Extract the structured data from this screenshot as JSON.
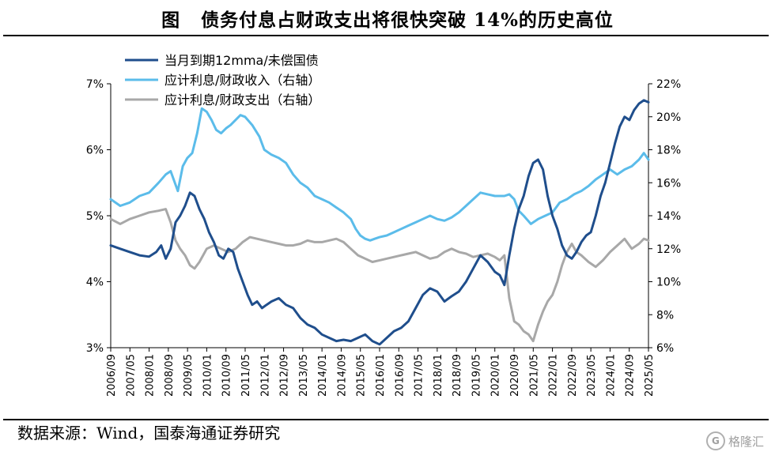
{
  "header": {
    "figure_label": "图",
    "title": "债务付息占财政支出将很快突破 14%的历史高位"
  },
  "footer": {
    "source": "数据来源：Wind，国泰海通证券研究"
  },
  "watermark": {
    "text": "格隆汇",
    "logo_glyph": "G"
  },
  "chart_data": {
    "type": "line",
    "title": "债务付息占财政支出将很快突破 14%的历史高位",
    "xlabel": "",
    "ylabel": "",
    "left_axis": {
      "ylim": [
        3,
        7
      ],
      "ticks": [
        "3%",
        "4%",
        "5%",
        "6%",
        "7%"
      ]
    },
    "right_axis": {
      "ylim": [
        6,
        22
      ],
      "ticks": [
        "6%",
        "8%",
        "10%",
        "12%",
        "14%",
        "16%",
        "18%",
        "20%",
        "22%"
      ]
    },
    "x_ticks": [
      "2006/09",
      "2007/05",
      "2008/01",
      "2008/09",
      "2009/05",
      "2010/01",
      "2010/09",
      "2011/05",
      "2012/01",
      "2012/09",
      "2013/05",
      "2014/01",
      "2014/09",
      "2015/05",
      "2016/01",
      "2016/09",
      "2017/05",
      "2018/01",
      "2018/09",
      "2019/05",
      "2020/01",
      "2020/09",
      "2021/05",
      "2022/01",
      "2022/09",
      "2023/05",
      "2024/01",
      "2024/09",
      "2025/05"
    ],
    "x_range": [
      2006.67,
      2025.33
    ],
    "grid": false,
    "legend": "top-left",
    "series": [
      {
        "name": "当月到期12mma/未偿国债",
        "axis": "left",
        "color": "#1f4e8c",
        "x": [
          2006.67,
          2007.0,
          2007.33,
          2007.67,
          2008.0,
          2008.25,
          2008.42,
          2008.58,
          2008.75,
          2008.92,
          2009.08,
          2009.25,
          2009.42,
          2009.58,
          2009.75,
          2009.92,
          2010.08,
          2010.25,
          2010.42,
          2010.58,
          2010.75,
          2010.92,
          2011.08,
          2011.25,
          2011.42,
          2011.58,
          2011.75,
          2011.92,
          2012.08,
          2012.25,
          2012.5,
          2012.75,
          2013.0,
          2013.25,
          2013.5,
          2013.75,
          2014.0,
          2014.25,
          2014.5,
          2014.75,
          2015.0,
          2015.25,
          2015.5,
          2015.75,
          2016.0,
          2016.25,
          2016.5,
          2016.75,
          2017.0,
          2017.25,
          2017.5,
          2017.75,
          2018.0,
          2018.25,
          2018.5,
          2018.75,
          2019.0,
          2019.25,
          2019.5,
          2019.75,
          2020.0,
          2020.17,
          2020.33,
          2020.5,
          2020.67,
          2020.83,
          2021.0,
          2021.17,
          2021.33,
          2021.5,
          2021.67,
          2021.83,
          2022.0,
          2022.17,
          2022.33,
          2022.5,
          2022.67,
          2022.83,
          2023.0,
          2023.17,
          2023.33,
          2023.5,
          2023.67,
          2023.83,
          2024.0,
          2024.17,
          2024.33,
          2024.5,
          2024.67,
          2024.83,
          2025.0,
          2025.17,
          2025.33
        ],
        "values": [
          4.55,
          4.5,
          4.45,
          4.4,
          4.38,
          4.45,
          4.55,
          4.35,
          4.5,
          4.9,
          5.0,
          5.15,
          5.35,
          5.3,
          5.1,
          4.95,
          4.75,
          4.6,
          4.4,
          4.35,
          4.5,
          4.45,
          4.2,
          4.0,
          3.8,
          3.65,
          3.7,
          3.6,
          3.65,
          3.7,
          3.75,
          3.65,
          3.6,
          3.45,
          3.35,
          3.3,
          3.2,
          3.15,
          3.1,
          3.12,
          3.1,
          3.15,
          3.2,
          3.1,
          3.05,
          3.15,
          3.25,
          3.3,
          3.4,
          3.6,
          3.8,
          3.9,
          3.85,
          3.7,
          3.78,
          3.85,
          4.0,
          4.2,
          4.4,
          4.3,
          4.15,
          4.1,
          3.95,
          4.4,
          4.8,
          5.1,
          5.3,
          5.6,
          5.8,
          5.85,
          5.7,
          5.3,
          5.0,
          4.8,
          4.55,
          4.4,
          4.35,
          4.45,
          4.6,
          4.7,
          4.75,
          5.0,
          5.3,
          5.5,
          5.8,
          6.1,
          6.35,
          6.5,
          6.45,
          6.6,
          6.7,
          6.75,
          6.72
        ]
      },
      {
        "name": "应计利息/财政收入（右轴）",
        "axis": "right",
        "color": "#5bbcea",
        "x": [
          2006.67,
          2007.0,
          2007.33,
          2007.67,
          2008.0,
          2008.33,
          2008.58,
          2008.75,
          2009.0,
          2009.17,
          2009.33,
          2009.5,
          2009.67,
          2009.83,
          2010.0,
          2010.17,
          2010.33,
          2010.5,
          2010.67,
          2010.83,
          2011.0,
          2011.17,
          2011.33,
          2011.58,
          2011.83,
          2012.0,
          2012.25,
          2012.5,
          2012.75,
          2013.0,
          2013.25,
          2013.5,
          2013.75,
          2014.0,
          2014.25,
          2014.5,
          2014.75,
          2015.0,
          2015.17,
          2015.33,
          2015.5,
          2015.67,
          2015.83,
          2016.0,
          2016.25,
          2016.5,
          2016.75,
          2017.0,
          2017.25,
          2017.5,
          2017.75,
          2018.0,
          2018.25,
          2018.5,
          2018.75,
          2019.0,
          2019.25,
          2019.5,
          2019.75,
          2020.0,
          2020.17,
          2020.33,
          2020.5,
          2020.67,
          2020.83,
          2021.0,
          2021.25,
          2021.5,
          2021.75,
          2022.0,
          2022.25,
          2022.5,
          2022.75,
          2023.0,
          2023.25,
          2023.5,
          2023.75,
          2024.0,
          2024.25,
          2024.5,
          2024.75,
          2025.0,
          2025.17,
          2025.33
        ],
        "values": [
          15.0,
          14.6,
          14.8,
          15.2,
          15.4,
          16.0,
          16.5,
          16.7,
          15.5,
          17.0,
          17.5,
          17.8,
          19.0,
          20.5,
          20.3,
          19.8,
          19.2,
          19.0,
          19.3,
          19.5,
          19.8,
          20.1,
          20.0,
          19.5,
          18.8,
          18.0,
          17.7,
          17.5,
          17.2,
          16.5,
          16.0,
          15.7,
          15.2,
          15.0,
          14.8,
          14.5,
          14.2,
          13.8,
          13.2,
          12.8,
          12.6,
          12.5,
          12.6,
          12.7,
          12.8,
          13.0,
          13.2,
          13.4,
          13.6,
          13.8,
          14.0,
          13.8,
          13.7,
          13.9,
          14.2,
          14.6,
          15.0,
          15.4,
          15.3,
          15.2,
          15.2,
          15.2,
          15.3,
          15.0,
          14.3,
          14.0,
          13.5,
          13.8,
          14.0,
          14.2,
          14.8,
          15.0,
          15.3,
          15.5,
          15.8,
          16.2,
          16.5,
          16.8,
          16.5,
          16.8,
          17.0,
          17.4,
          17.8,
          17.4
        ]
      },
      {
        "name": "应计利息/财政支出（右轴）",
        "axis": "right",
        "color": "#a8a8a8",
        "x": [
          2006.67,
          2007.0,
          2007.33,
          2007.67,
          2008.0,
          2008.33,
          2008.58,
          2008.75,
          2008.92,
          2009.08,
          2009.25,
          2009.42,
          2009.58,
          2009.75,
          2010.0,
          2010.25,
          2010.5,
          2010.75,
          2011.0,
          2011.25,
          2011.5,
          2011.75,
          2012.0,
          2012.25,
          2012.5,
          2012.75,
          2013.0,
          2013.25,
          2013.5,
          2013.75,
          2014.0,
          2014.25,
          2014.5,
          2014.75,
          2015.0,
          2015.25,
          2015.5,
          2015.75,
          2016.0,
          2016.25,
          2016.5,
          2016.75,
          2017.0,
          2017.25,
          2017.5,
          2017.75,
          2018.0,
          2018.25,
          2018.5,
          2018.75,
          2019.0,
          2019.25,
          2019.5,
          2019.75,
          2020.0,
          2020.17,
          2020.33,
          2020.5,
          2020.67,
          2020.83,
          2021.0,
          2021.17,
          2021.33,
          2021.5,
          2021.67,
          2021.83,
          2022.0,
          2022.17,
          2022.33,
          2022.5,
          2022.67,
          2022.83,
          2023.0,
          2023.25,
          2023.5,
          2023.75,
          2024.0,
          2024.25,
          2024.5,
          2024.75,
          2025.0,
          2025.17,
          2025.33
        ],
        "values": [
          13.8,
          13.5,
          13.8,
          14.0,
          14.2,
          14.3,
          14.4,
          13.6,
          12.5,
          12.0,
          11.6,
          11.0,
          10.8,
          11.2,
          12.0,
          12.2,
          12.0,
          11.8,
          12.0,
          12.4,
          12.7,
          12.6,
          12.5,
          12.4,
          12.3,
          12.2,
          12.2,
          12.3,
          12.5,
          12.4,
          12.4,
          12.5,
          12.6,
          12.4,
          12.0,
          11.6,
          11.4,
          11.2,
          11.3,
          11.4,
          11.5,
          11.6,
          11.7,
          11.8,
          11.6,
          11.4,
          11.5,
          11.8,
          12.0,
          11.8,
          11.7,
          11.5,
          11.6,
          11.7,
          11.5,
          11.3,
          11.6,
          9.0,
          7.6,
          7.4,
          7.0,
          6.8,
          6.4,
          7.4,
          8.2,
          8.8,
          9.2,
          10.0,
          11.0,
          11.8,
          12.3,
          11.8,
          11.6,
          11.2,
          10.9,
          11.3,
          11.8,
          12.2,
          12.6,
          12.0,
          12.3,
          12.6,
          12.5
        ]
      }
    ]
  }
}
